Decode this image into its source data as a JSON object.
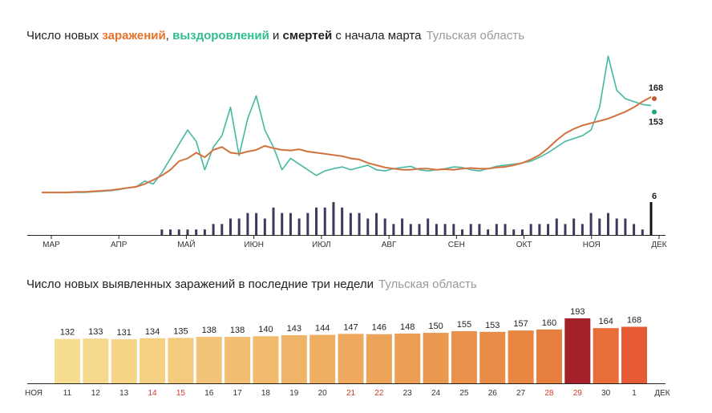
{
  "chart1": {
    "title_prefix": "Число новых ",
    "title_cases": "заражений",
    "title_sep1": ", ",
    "title_recovered": "выздоровлений",
    "title_sep2": " и ",
    "title_deaths": "смертей",
    "title_suffix": " с начала марта",
    "region": "Тульская область",
    "colors": {
      "cases": "#c2593a",
      "cases_light": "#e8a060",
      "recovered": "#1aa677",
      "recovered_light": "#a9dfe6",
      "deaths": "#3a3a5a"
    }
  },
  "chart2": {
    "title": "Число новых выявленных заражений в последние три недели",
    "region": "Тульская область"
  },
  "chart_data": [
    {
      "type": "line",
      "months": [
        "МАР",
        "АПР",
        "МАЙ",
        "ИЮН",
        "ИЮЛ",
        "АВГ",
        "СЕН",
        "ОКТ",
        "НОЯ",
        "ДЕК"
      ],
      "series": [
        {
          "values": [
            0,
            0,
            0,
            0,
            1,
            1,
            2,
            3,
            4,
            6,
            8,
            10,
            15,
            22,
            30,
            40,
            55,
            60,
            70,
            62,
            75,
            80,
            70,
            68,
            72,
            75,
            82,
            78,
            75,
            74,
            76,
            72,
            70,
            68,
            66,
            64,
            60,
            58,
            52,
            48,
            44,
            42,
            40,
            40,
            42,
            42,
            40,
            41,
            40,
            42,
            43,
            42,
            42,
            44,
            45,
            48,
            52,
            58,
            66,
            78,
            92,
            104,
            112,
            118,
            122,
            126,
            130,
            136,
            142,
            150,
            160,
            168
          ]
        },
        {
          "values": [
            0,
            0,
            0,
            0,
            0,
            0,
            1,
            2,
            3,
            5,
            8,
            10,
            20,
            15,
            35,
            60,
            85,
            110,
            90,
            40,
            80,
            100,
            150,
            65,
            130,
            170,
            110,
            80,
            40,
            60,
            50,
            40,
            30,
            38,
            42,
            45,
            40,
            44,
            48,
            40,
            38,
            42,
            44,
            46,
            40,
            38,
            40,
            42,
            45,
            44,
            40,
            38,
            42,
            46,
            48,
            50,
            52,
            55,
            62,
            70,
            80,
            90,
            95,
            100,
            110,
            150,
            240,
            180,
            165,
            160,
            155,
            153
          ]
        },
        {
          "values": [
            0,
            0,
            0,
            0,
            0,
            0,
            0,
            0,
            0,
            0,
            0,
            0,
            0,
            0,
            1,
            1,
            1,
            1,
            1,
            1,
            2,
            2,
            3,
            3,
            4,
            4,
            3,
            5,
            4,
            4,
            3,
            4,
            5,
            5,
            6,
            5,
            4,
            4,
            3,
            4,
            3,
            2,
            3,
            2,
            2,
            3,
            2,
            2,
            2,
            1,
            2,
            2,
            1,
            2,
            2,
            1,
            1,
            2,
            2,
            2,
            3,
            2,
            3,
            2,
            4,
            3,
            4,
            3,
            3,
            2,
            1,
            6
          ]
        }
      ],
      "end_labels": {
        "cases": "168",
        "recovered": "153",
        "deaths": "6"
      }
    },
    {
      "type": "bar",
      "categories": [
        "11",
        "12",
        "13",
        "14",
        "15",
        "16",
        "17",
        "18",
        "19",
        "20",
        "21",
        "22",
        "23",
        "24",
        "25",
        "26",
        "27",
        "28",
        "29",
        "30",
        "1"
      ],
      "values": [
        132,
        133,
        131,
        134,
        135,
        138,
        138,
        140,
        143,
        144,
        147,
        146,
        148,
        150,
        155,
        153,
        157,
        160,
        193,
        164,
        168
      ],
      "weekend": [
        false,
        false,
        false,
        true,
        true,
        false,
        false,
        false,
        false,
        false,
        true,
        true,
        false,
        false,
        false,
        false,
        false,
        true,
        true,
        false,
        false
      ],
      "start_label": "НОЯ",
      "end_label": "ДЕК",
      "ylim": [
        0,
        200
      ]
    }
  ]
}
